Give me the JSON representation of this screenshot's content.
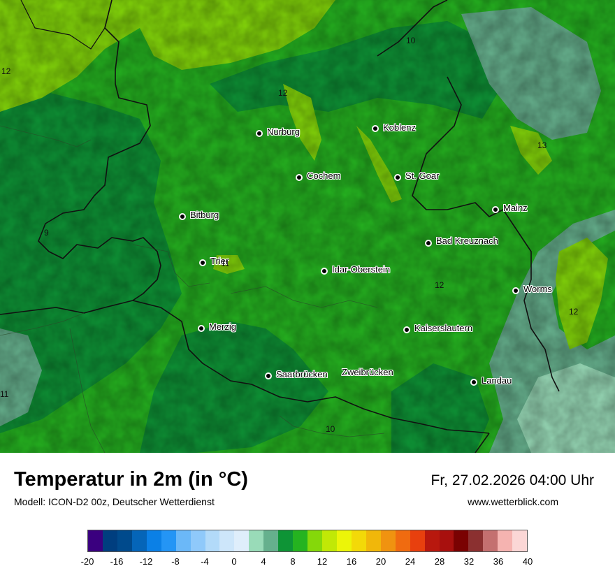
{
  "header": {
    "title": "Temperatur in 2m (in °C)",
    "model": "Modell: ICON-D2 00z, Deutscher Wetterdienst",
    "datetime": "Fr, 27.02.2026 04:00 Uhr",
    "website": "www.wetterblick.com"
  },
  "cities": [
    {
      "name": "Nürburg"
    },
    {
      "name": "Koblenz"
    },
    {
      "name": "Cochem"
    },
    {
      "name": "St. Goar"
    },
    {
      "name": "Bitburg"
    },
    {
      "name": "Mainz"
    },
    {
      "name": "Bad Kreuznach"
    },
    {
      "name": "Trier"
    },
    {
      "name": "Idar-Oberstein"
    },
    {
      "name": "Worms"
    },
    {
      "name": "Merzig"
    },
    {
      "name": "Kaiserslautern"
    },
    {
      "name": "Saarbrücken"
    },
    {
      "name": "Zweibrücken"
    },
    {
      "name": "Landau"
    }
  ],
  "isoline_labels": [
    "10",
    "12",
    "12",
    "13",
    "9",
    "11",
    "12",
    "12",
    "11",
    "10"
  ],
  "legend": {
    "colors": [
      "#3a007f",
      "#003e7f",
      "#004a8c",
      "#0565b8",
      "#0b80e6",
      "#2495f5",
      "#6bb8f8",
      "#8fc9fa",
      "#b2daf9",
      "#cde6fa",
      "#dfeefb",
      "#99dbb8",
      "#66b08d",
      "#0e9436",
      "#25b320",
      "#85d80a",
      "#c1e806",
      "#ecf508",
      "#f3d908",
      "#f1b70a",
      "#f09310",
      "#f06b10",
      "#e8400e",
      "#b8180e",
      "#a8100e",
      "#7a0202",
      "#8b3030",
      "#c47070",
      "#f5b3b0",
      "#fbd7d6"
    ],
    "ticks": [
      "-20",
      "-16",
      "-12",
      "-8",
      "-4",
      "0",
      "4",
      "8",
      "12",
      "16",
      "20",
      "24",
      "28",
      "32",
      "36",
      "40"
    ]
  }
}
